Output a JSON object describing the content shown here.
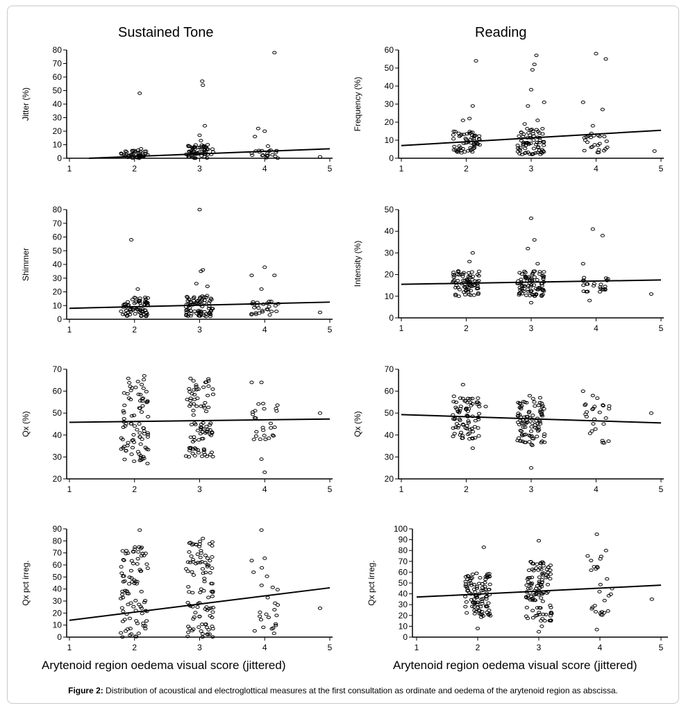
{
  "column_titles": [
    "Sustained Tone",
    "Reading"
  ],
  "x_axis_label": "Arytenoid region oedema visual score (jittered)",
  "caption": {
    "label": "Figure 2:",
    "text": " Distribution of acoustical and electroglottical measures at the first consultation as ordinate and oedema of the arytenoid region as abscissa."
  },
  "chart_data": [
    {
      "type": "scatter",
      "column": "Sustained Tone",
      "ylabel": "Jitter (%)",
      "xlim": [
        1,
        5
      ],
      "xticks": [
        1,
        2,
        3,
        4,
        5
      ],
      "ylim": [
        0,
        80
      ],
      "yticks": [
        0,
        10,
        20,
        30,
        40,
        50,
        60,
        70,
        80
      ],
      "fit_line": {
        "x": [
          1.3,
          5
        ],
        "y": [
          0,
          7
        ]
      },
      "clusters": [
        {
          "x": 2,
          "n": 45,
          "ymin": 0,
          "ymax": 6
        },
        {
          "x": 3,
          "n": 55,
          "ymin": 0,
          "ymax": 10
        },
        {
          "x": 4,
          "n": 20,
          "ymin": 0,
          "ymax": 6
        }
      ],
      "outliers": [
        [
          2.08,
          48
        ],
        [
          2.1,
          7
        ],
        [
          2.95,
          3
        ],
        [
          3.0,
          17
        ],
        [
          3.02,
          13
        ],
        [
          3.04,
          57
        ],
        [
          3.05,
          54
        ],
        [
          3.08,
          24
        ],
        [
          3.1,
          8
        ],
        [
          3.85,
          16
        ],
        [
          3.9,
          22
        ],
        [
          4.0,
          20
        ],
        [
          4.05,
          9
        ],
        [
          4.15,
          78
        ],
        [
          4.85,
          1
        ]
      ]
    },
    {
      "type": "scatter",
      "column": "Reading",
      "ylabel": "Frequency (%)",
      "xlim": [
        1,
        5
      ],
      "xticks": [
        1,
        2,
        3,
        4,
        5
      ],
      "ylim": [
        0,
        60
      ],
      "yticks": [
        0,
        10,
        20,
        30,
        40,
        50,
        60
      ],
      "fit_line": {
        "x": [
          1,
          5
        ],
        "y": [
          7,
          15.5
        ]
      },
      "clusters": [
        {
          "x": 2,
          "n": 60,
          "ymin": 3,
          "ymax": 15
        },
        {
          "x": 3,
          "n": 70,
          "ymin": 2,
          "ymax": 17
        },
        {
          "x": 4,
          "n": 25,
          "ymin": 3,
          "ymax": 14
        }
      ],
      "outliers": [
        [
          2.1,
          29
        ],
        [
          2.15,
          54
        ],
        [
          1.95,
          21
        ],
        [
          2.05,
          22
        ],
        [
          2.9,
          19
        ],
        [
          2.95,
          29
        ],
        [
          3.0,
          38
        ],
        [
          3.02,
          49
        ],
        [
          3.05,
          52
        ],
        [
          3.08,
          57
        ],
        [
          3.1,
          21
        ],
        [
          3.2,
          31
        ],
        [
          3.8,
          31
        ],
        [
          3.95,
          18
        ],
        [
          4.0,
          58
        ],
        [
          4.1,
          27
        ],
        [
          4.15,
          55
        ],
        [
          4.9,
          4
        ]
      ]
    },
    {
      "type": "scatter",
      "column": "Sustained Tone",
      "ylabel": "Shimmer",
      "xlim": [
        1,
        5
      ],
      "xticks": [
        1,
        2,
        3,
        4,
        5
      ],
      "ylim": [
        0,
        80
      ],
      "yticks": [
        0,
        10,
        20,
        30,
        40,
        50,
        60,
        70,
        80
      ],
      "fit_line": {
        "x": [
          1,
          5
        ],
        "y": [
          8,
          12.5
        ]
      },
      "clusters": [
        {
          "x": 2,
          "n": 70,
          "ymin": 2,
          "ymax": 16
        },
        {
          "x": 3,
          "n": 80,
          "ymin": 2,
          "ymax": 18
        },
        {
          "x": 4,
          "n": 25,
          "ymin": 3,
          "ymax": 14
        }
      ],
      "outliers": [
        [
          1.95,
          58
        ],
        [
          2.05,
          22
        ],
        [
          2.2,
          12
        ],
        [
          2.95,
          26
        ],
        [
          3.0,
          80
        ],
        [
          3.02,
          35
        ],
        [
          3.05,
          36
        ],
        [
          3.12,
          24
        ],
        [
          3.8,
          32
        ],
        [
          3.95,
          22
        ],
        [
          4.0,
          38
        ],
        [
          4.1,
          13
        ],
        [
          4.15,
          32
        ],
        [
          4.85,
          5
        ]
      ]
    },
    {
      "type": "scatter",
      "column": "Reading",
      "ylabel": "Intensity (%)",
      "xlim": [
        1,
        5
      ],
      "xticks": [
        1,
        2,
        3,
        4,
        5
      ],
      "ylim": [
        0,
        50
      ],
      "yticks": [
        0,
        10,
        20,
        30,
        40,
        50
      ],
      "fit_line": {
        "x": [
          1,
          5
        ],
        "y": [
          15.5,
          17.5
        ]
      },
      "clusters": [
        {
          "x": 2,
          "n": 75,
          "ymin": 10,
          "ymax": 22
        },
        {
          "x": 3,
          "n": 85,
          "ymin": 10,
          "ymax": 22
        },
        {
          "x": 4,
          "n": 25,
          "ymin": 12,
          "ymax": 19
        }
      ],
      "outliers": [
        [
          2.1,
          30
        ],
        [
          2.05,
          26
        ],
        [
          1.85,
          15
        ],
        [
          2.95,
          32
        ],
        [
          3.0,
          46
        ],
        [
          3.05,
          36
        ],
        [
          3.0,
          7
        ],
        [
          3.1,
          25
        ],
        [
          3.8,
          25
        ],
        [
          3.95,
          41
        ],
        [
          3.9,
          8
        ],
        [
          4.1,
          38
        ],
        [
          4.1,
          13
        ],
        [
          4.85,
          11
        ]
      ]
    },
    {
      "type": "scatter",
      "column": "Sustained Tone",
      "ylabel": "Qx (%)",
      "xlim": [
        1,
        5
      ],
      "xticks": [
        1,
        2,
        3,
        4,
        5
      ],
      "ylim": [
        20,
        70
      ],
      "yticks": [
        20,
        30,
        40,
        50,
        60,
        70
      ],
      "fit_line": {
        "x": [
          1,
          5
        ],
        "y": [
          45.8,
          47.3
        ]
      },
      "clusters": [
        {
          "x": 2,
          "n": 85,
          "ymin": 28,
          "ymax": 66
        },
        {
          "x": 3,
          "n": 90,
          "ymin": 30,
          "ymax": 66
        },
        {
          "x": 4,
          "n": 25,
          "ymin": 38,
          "ymax": 55
        }
      ],
      "outliers": [
        [
          2.2,
          27
        ],
        [
          2.15,
          67
        ],
        [
          3.8,
          64
        ],
        [
          3.95,
          64
        ],
        [
          3.95,
          29
        ],
        [
          4.0,
          23
        ],
        [
          4.85,
          50
        ]
      ]
    },
    {
      "type": "scatter",
      "column": "Reading",
      "ylabel": "Qx (%)",
      "xlim": [
        1,
        5
      ],
      "xticks": [
        1,
        2,
        3,
        4,
        5
      ],
      "ylim": [
        20,
        70
      ],
      "yticks": [
        20,
        30,
        40,
        50,
        60,
        70
      ],
      "fit_line": {
        "x": [
          1,
          5
        ],
        "y": [
          49.3,
          45.5
        ]
      },
      "clusters": [
        {
          "x": 2,
          "n": 80,
          "ymin": 38,
          "ymax": 58
        },
        {
          "x": 3,
          "n": 95,
          "ymin": 35,
          "ymax": 58
        },
        {
          "x": 4,
          "n": 25,
          "ymin": 36,
          "ymax": 57
        }
      ],
      "outliers": [
        [
          1.95,
          63
        ],
        [
          2.1,
          34
        ],
        [
          2.3,
          53
        ],
        [
          3.0,
          25
        ],
        [
          3.8,
          60
        ],
        [
          3.95,
          58
        ],
        [
          4.85,
          50
        ]
      ]
    },
    {
      "type": "scatter",
      "column": "Sustained Tone",
      "ylabel": "Qx pct irreg.",
      "xlim": [
        1,
        5
      ],
      "xticks": [
        1,
        2,
        3,
        4,
        5
      ],
      "ylim": [
        0,
        90
      ],
      "yticks": [
        0,
        10,
        20,
        30,
        40,
        50,
        60,
        70,
        80,
        90
      ],
      "fit_line": {
        "x": [
          1,
          5
        ],
        "y": [
          14,
          41
        ]
      },
      "clusters": [
        {
          "x": 2,
          "n": 90,
          "ymin": 0,
          "ymax": 75
        },
        {
          "x": 3,
          "n": 100,
          "ymin": 0,
          "ymax": 80
        },
        {
          "x": 4,
          "n": 25,
          "ymin": 0,
          "ymax": 75
        }
      ],
      "outliers": [
        [
          2.08,
          89
        ],
        [
          3.05,
          82
        ],
        [
          3.95,
          89
        ],
        [
          4.85,
          24
        ]
      ]
    },
    {
      "type": "scatter",
      "column": "Reading",
      "ylabel": "Qx pct irreg.",
      "xlim": [
        1,
        5
      ],
      "xticks": [
        1,
        2,
        3,
        4,
        5
      ],
      "ylim": [
        0,
        100
      ],
      "yticks": [
        0,
        10,
        20,
        30,
        40,
        50,
        60,
        70,
        80,
        90,
        100
      ],
      "fit_line": {
        "x": [
          1,
          5
        ],
        "y": [
          37,
          48
        ]
      },
      "clusters": [
        {
          "x": 2,
          "n": 100,
          "ymin": 18,
          "ymax": 60
        },
        {
          "x": 3,
          "n": 110,
          "ymin": 15,
          "ymax": 70
        },
        {
          "x": 4,
          "n": 25,
          "ymin": 20,
          "ymax": 78
        }
      ],
      "outliers": [
        [
          2.1,
          83
        ],
        [
          2.0,
          8
        ],
        [
          3.0,
          89
        ],
        [
          3.0,
          5
        ],
        [
          3.05,
          10
        ],
        [
          3.8,
          75
        ],
        [
          3.95,
          95
        ],
        [
          3.95,
          7
        ],
        [
          4.1,
          80
        ],
        [
          4.85,
          35
        ]
      ]
    }
  ]
}
